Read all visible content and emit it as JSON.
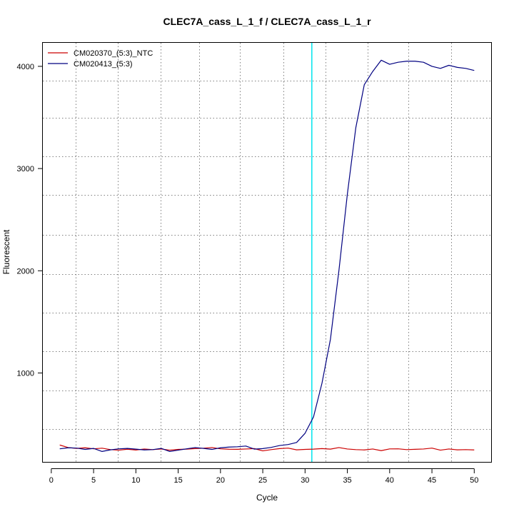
{
  "chart_data": {
    "type": "line",
    "title": "CLEC7A_cass_L_1_f / CLEC7A_cass_L_1_r",
    "xlabel": "Cycle",
    "ylabel": "Fluorescent",
    "xlim": [
      -1,
      52
    ],
    "ylim": [
      130,
      4230
    ],
    "xticks": [
      0,
      5,
      10,
      15,
      20,
      25,
      30,
      35,
      40,
      45,
      50
    ],
    "yticks": [
      1000,
      2000,
      3000,
      4000
    ],
    "x_grid": [
      2.9,
      7.9,
      12.9,
      17.5,
      22.3,
      27.4,
      32.4,
      37.4,
      42.2,
      47.3
    ],
    "y_grid": [
      450,
      830,
      1210,
      1590,
      1970,
      2350,
      2740,
      3120,
      3500,
      3860
    ],
    "grid": true,
    "threshold_cycle": 30.8,
    "threshold_color": "#00e5ee",
    "legend_position": "top-left",
    "x": [
      1,
      2,
      3,
      4,
      5,
      6,
      7,
      8,
      9,
      10,
      11,
      12,
      13,
      14,
      15,
      16,
      17,
      18,
      19,
      20,
      21,
      22,
      23,
      24,
      25,
      26,
      27,
      28,
      29,
      30,
      31,
      32,
      33,
      34,
      35,
      36,
      37,
      38,
      39,
      40,
      41,
      42,
      43,
      44,
      45,
      46,
      47,
      48,
      49,
      50
    ],
    "series": [
      {
        "name": "CM020370_(5:3)_NTC",
        "color": "#cc0000",
        "values": [
          295,
          270,
          262,
          268,
          258,
          264,
          250,
          245,
          254,
          246,
          256,
          250,
          256,
          245,
          252,
          255,
          260,
          264,
          270,
          258,
          254,
          253,
          256,
          260,
          238,
          250,
          260,
          265,
          248,
          252,
          255,
          260,
          255,
          270,
          256,
          250,
          247,
          256,
          240,
          257,
          258,
          250,
          253,
          256,
          265,
          245,
          256,
          248,
          250,
          247
        ]
      },
      {
        "name": "CM020413_(5:3)",
        "color": "#000080",
        "values": [
          258,
          268,
          265,
          252,
          262,
          232,
          248,
          258,
          262,
          255,
          247,
          250,
          262,
          232,
          245,
          258,
          270,
          262,
          252,
          268,
          275,
          278,
          285,
          255,
          260,
          272,
          290,
          300,
          320,
          410,
          570,
          900,
          1330,
          2000,
          2750,
          3400,
          3820,
          3950,
          4060,
          4020,
          4040,
          4050,
          4050,
          4040,
          4000,
          3980,
          4010,
          3990,
          3980,
          3960
        ]
      }
    ]
  }
}
